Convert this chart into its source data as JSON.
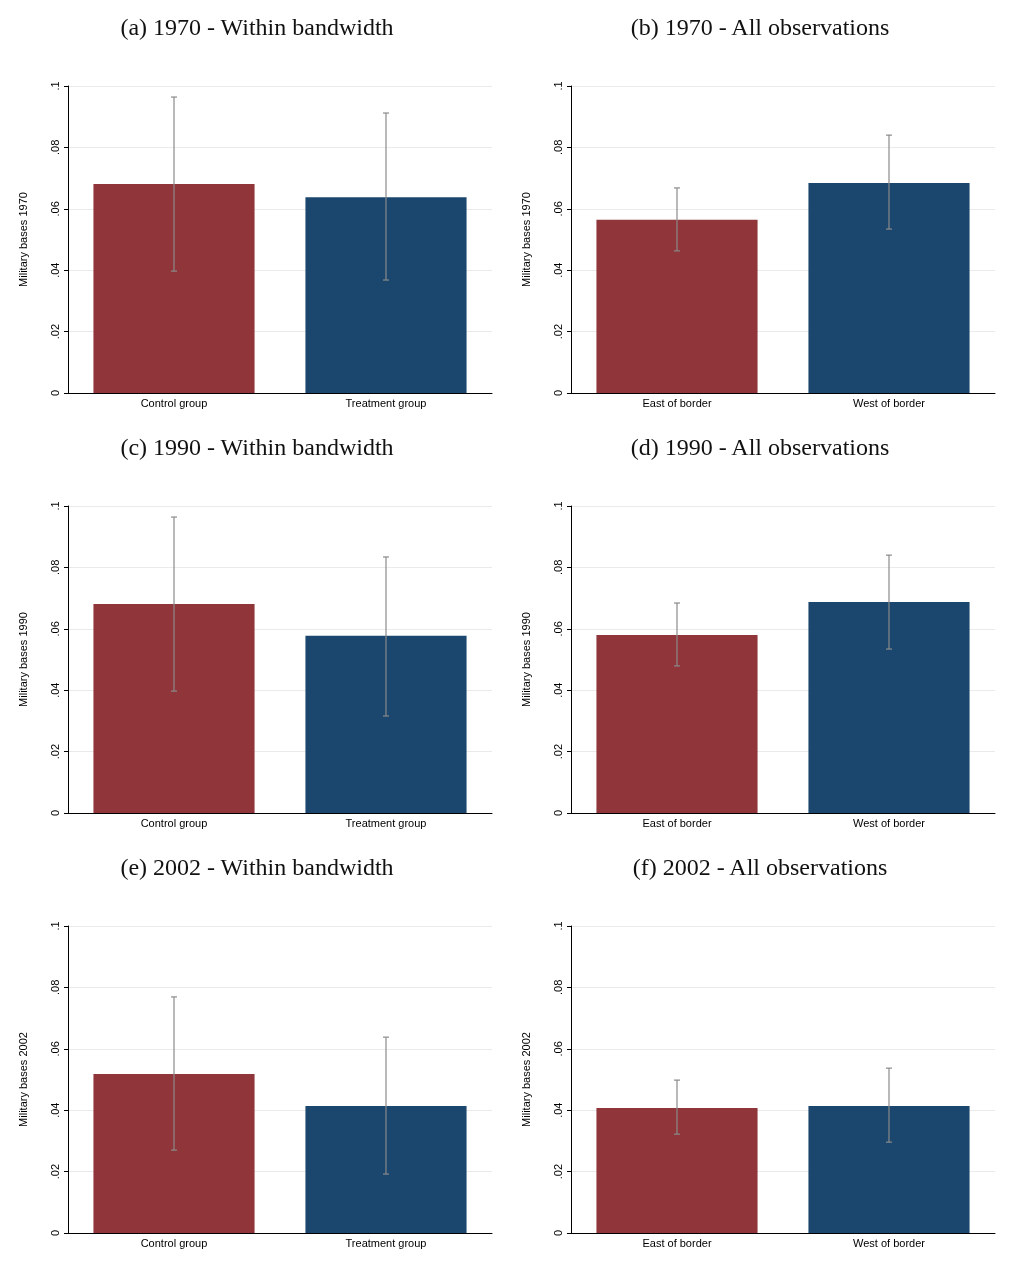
{
  "chart_data": [
    {
      "type": "bar",
      "title": "(a) 1970 - Within bandwidth",
      "ylabel": "Military bases 1970",
      "categories": [
        "Control group",
        "Treatment group"
      ],
      "values": [
        0.0681,
        0.0638
      ],
      "colors": [
        "#903539",
        "#1b476e"
      ],
      "errors": [
        [
          0.0397,
          0.0964
        ],
        [
          0.0368,
          0.0912
        ]
      ],
      "ylim": [
        0,
        0.1
      ],
      "yticks": [
        {
          "value": 0,
          "label": "0"
        },
        {
          "value": 0.02,
          "label": ".02"
        },
        {
          "value": 0.04,
          "label": ".04"
        },
        {
          "value": 0.06,
          "label": ".06"
        },
        {
          "value": 0.08,
          "label": ".08"
        },
        {
          "value": 0.1,
          "label": ".1"
        }
      ],
      "grid": "y"
    },
    {
      "type": "bar",
      "title": "(b) 1970 - All observations",
      "ylabel": "Military bases 1970",
      "categories": [
        "East of border",
        "West of border"
      ],
      "values": [
        0.0564,
        0.0684
      ],
      "colors": [
        "#903539",
        "#1b476e"
      ],
      "errors": [
        [
          0.0463,
          0.0668
        ],
        [
          0.0534,
          0.084
        ]
      ],
      "ylim": [
        0,
        0.1
      ],
      "yticks": [
        {
          "value": 0,
          "label": "0"
        },
        {
          "value": 0.02,
          "label": ".02"
        },
        {
          "value": 0.04,
          "label": ".04"
        },
        {
          "value": 0.06,
          "label": ".06"
        },
        {
          "value": 0.08,
          "label": ".08"
        },
        {
          "value": 0.1,
          "label": ".1"
        }
      ],
      "grid": "y"
    },
    {
      "type": "bar",
      "title": "(c) 1990 - Within bandwidth",
      "ylabel": "Military bases 1990",
      "categories": [
        "Control group",
        "Treatment group"
      ],
      "values": [
        0.0681,
        0.0577
      ],
      "colors": [
        "#903539",
        "#1b476e"
      ],
      "errors": [
        [
          0.0397,
          0.0964
        ],
        [
          0.0316,
          0.0834
        ]
      ],
      "ylim": [
        0,
        0.1
      ],
      "yticks": [
        {
          "value": 0,
          "label": "0"
        },
        {
          "value": 0.02,
          "label": ".02"
        },
        {
          "value": 0.04,
          "label": ".04"
        },
        {
          "value": 0.06,
          "label": ".06"
        },
        {
          "value": 0.08,
          "label": ".08"
        },
        {
          "value": 0.1,
          "label": ".1"
        }
      ],
      "grid": "y"
    },
    {
      "type": "bar",
      "title": "(d) 1990 - All observations",
      "ylabel": "Military bases 1990",
      "categories": [
        "East of border",
        "West of border"
      ],
      "values": [
        0.058,
        0.0687
      ],
      "colors": [
        "#903539",
        "#1b476e"
      ],
      "errors": [
        [
          0.0479,
          0.0684
        ],
        [
          0.0534,
          0.084
        ]
      ],
      "ylim": [
        0,
        0.1
      ],
      "yticks": [
        {
          "value": 0,
          "label": "0"
        },
        {
          "value": 0.02,
          "label": ".02"
        },
        {
          "value": 0.04,
          "label": ".04"
        },
        {
          "value": 0.06,
          "label": ".06"
        },
        {
          "value": 0.08,
          "label": ".08"
        },
        {
          "value": 0.1,
          "label": ".1"
        }
      ],
      "grid": "y"
    },
    {
      "type": "bar",
      "title": "(e) 2002 - Within bandwidth",
      "ylabel": "Military bases 2002",
      "categories": [
        "Control group",
        "Treatment group"
      ],
      "values": [
        0.0518,
        0.0414
      ],
      "colors": [
        "#903539",
        "#1b476e"
      ],
      "errors": [
        [
          0.027,
          0.0769
        ],
        [
          0.0192,
          0.0638
        ]
      ],
      "ylim": [
        0,
        0.1
      ],
      "yticks": [
        {
          "value": 0,
          "label": "0"
        },
        {
          "value": 0.02,
          "label": ".02"
        },
        {
          "value": 0.04,
          "label": ".04"
        },
        {
          "value": 0.06,
          "label": ".06"
        },
        {
          "value": 0.08,
          "label": ".08"
        },
        {
          "value": 0.1,
          "label": ".1"
        }
      ],
      "grid": "y"
    },
    {
      "type": "bar",
      "title": "(f) 2002 - All observations",
      "ylabel": "Military bases 2002",
      "categories": [
        "East of border",
        "West of border"
      ],
      "values": [
        0.0407,
        0.0414
      ],
      "colors": [
        "#903539",
        "#1b476e"
      ],
      "errors": [
        [
          0.0322,
          0.0498
        ],
        [
          0.0296,
          0.0537
        ]
      ],
      "ylim": [
        0,
        0.1
      ],
      "yticks": [
        {
          "value": 0,
          "label": "0"
        },
        {
          "value": 0.02,
          "label": ".02"
        },
        {
          "value": 0.04,
          "label": ".04"
        },
        {
          "value": 0.06,
          "label": ".06"
        },
        {
          "value": 0.08,
          "label": ".08"
        },
        {
          "value": 0.1,
          "label": ".1"
        }
      ],
      "grid": "y"
    }
  ]
}
